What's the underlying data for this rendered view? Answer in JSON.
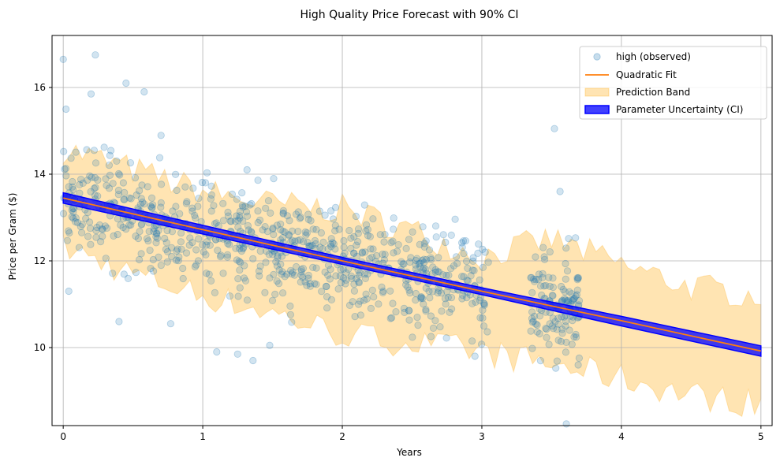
{
  "chart_data": {
    "type": "scatter",
    "title": "High Quality Price Forecast with 90% CI",
    "xlabel": "Years",
    "ylabel": "Price per Gram ($)",
    "xlim": [
      -0.08,
      5.08
    ],
    "ylim": [
      8.2,
      17.2
    ],
    "xticks": [
      0,
      1,
      2,
      3,
      4,
      5
    ],
    "yticks": [
      10,
      12,
      14,
      16
    ],
    "grid": true,
    "legend_position": "top-right",
    "series": [
      {
        "name": "high (observed)",
        "kind": "scatter",
        "color": "#1f77b4",
        "alpha": 0.2,
        "x_range": [
          0,
          3.7
        ],
        "count": 900,
        "notable_points": [
          {
            "x": 0.0,
            "y": 16.65
          },
          {
            "x": 0.23,
            "y": 16.75
          },
          {
            "x": 0.45,
            "y": 16.1
          },
          {
            "x": 0.2,
            "y": 15.85
          },
          {
            "x": 0.58,
            "y": 15.9
          },
          {
            "x": 0.02,
            "y": 15.5
          },
          {
            "x": 3.52,
            "y": 15.05
          },
          {
            "x": 3.56,
            "y": 13.6
          },
          {
            "x": 1.1,
            "y": 9.9
          },
          {
            "x": 1.25,
            "y": 9.85
          },
          {
            "x": 1.36,
            "y": 9.7
          },
          {
            "x": 1.48,
            "y": 10.05
          },
          {
            "x": 3.69,
            "y": 9.6
          },
          {
            "x": 0.04,
            "y": 11.3
          },
          {
            "x": 0.4,
            "y": 10.6
          },
          {
            "x": 0.77,
            "y": 10.55
          },
          {
            "x": 2.93,
            "y": 10.15
          }
        ]
      },
      {
        "name": "Quadratic Fit",
        "kind": "line",
        "color": "#ff7f0e",
        "x": [
          0,
          1,
          2,
          3,
          4,
          5
        ],
        "y": [
          13.45,
          12.72,
          12.0,
          11.3,
          10.62,
          9.92
        ]
      },
      {
        "name": "Prediction Band",
        "kind": "band",
        "color": "#ffa500",
        "alpha": 0.3,
        "x": [
          0,
          0.5,
          1,
          1.5,
          2,
          2.5,
          3,
          3.5,
          4,
          4.5,
          5
        ],
        "lower": [
          12.3,
          11.7,
          11.2,
          10.8,
          10.3,
          10.1,
          9.9,
          9.6,
          9.3,
          8.9,
          8.7
        ],
        "upper": [
          14.6,
          14.1,
          13.6,
          13.3,
          13.2,
          12.7,
          12.1,
          12.5,
          11.9,
          11.4,
          11.2
        ]
      },
      {
        "name": "Parameter Uncertainty (CI)",
        "kind": "band",
        "color": "#0000ff",
        "alpha": 0.75,
        "x": [
          0,
          1,
          2,
          3,
          4,
          5
        ],
        "lower": [
          13.33,
          12.62,
          11.92,
          11.22,
          10.5,
          9.8
        ],
        "upper": [
          13.57,
          12.82,
          12.08,
          11.38,
          10.72,
          10.04
        ]
      }
    ]
  }
}
